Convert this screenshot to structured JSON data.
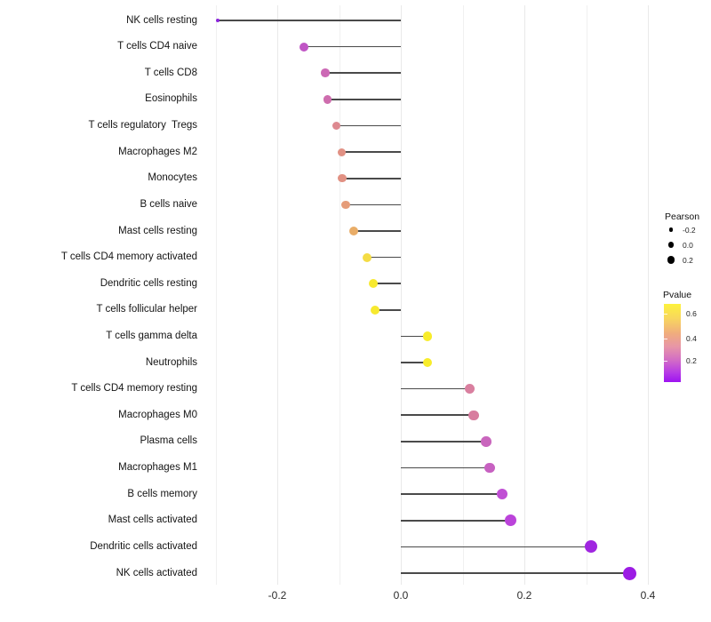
{
  "chart_data": {
    "type": "lollipop",
    "orientation": "horizontal",
    "title": "",
    "xlabel": "",
    "ylabel": "",
    "xlim": [
      -0.31,
      0.42
    ],
    "x_tick_values": [
      -0.2,
      0.0,
      0.2,
      0.4
    ],
    "x_tick_labels": [
      "-0.2",
      "0.0",
      "0.2",
      "0.4"
    ],
    "grid": "vertical gridlines every 0.1 (major at labeled ticks), light gray on white",
    "legend_position": "right",
    "categories": [
      "NK cells resting",
      "T cells CD4 naive",
      "T cells CD8",
      "Eosinophils",
      "T cells regulatory  Tregs",
      "Macrophages M2",
      "Monocytes",
      "B cells naive",
      "Mast cells resting",
      "T cells CD4 memory activated",
      "Dendritic cells resting",
      "T cells follicular helper",
      "T cells gamma delta",
      "Neutrophils",
      "T cells CD4 memory resting",
      "Macrophages M0",
      "Plasma cells",
      "Macrophages M1",
      "B cells memory",
      "Mast cells activated",
      "Dendritic cells activated",
      "NK cells activated"
    ],
    "series": [
      {
        "name": "Pearson",
        "values": [
          -0.296,
          -0.157,
          -0.122,
          -0.119,
          -0.104,
          -0.096,
          -0.095,
          -0.089,
          -0.076,
          -0.055,
          -0.045,
          -0.042,
          0.043,
          0.043,
          0.112,
          0.118,
          0.138,
          0.144,
          0.164,
          0.178,
          0.308,
          0.37
        ]
      },
      {
        "name": "Pvalue (estimated from dot color)",
        "values": [
          0.08,
          0.18,
          0.25,
          0.26,
          0.34,
          0.36,
          0.36,
          0.4,
          0.46,
          0.58,
          0.64,
          0.65,
          0.66,
          0.66,
          0.31,
          0.3,
          0.22,
          0.21,
          0.15,
          0.12,
          0.03,
          0.01
        ]
      }
    ],
    "point_colors": [
      "#8b24dc",
      "#c055c5",
      "#cc68b5",
      "#ce6dae",
      "#dd8990",
      "#e19184",
      "#e19183",
      "#e59c79",
      "#e9ad68",
      "#f4dc45",
      "#f7e92f",
      "#f7e92f",
      "#f8ec2a",
      "#f8ec2a",
      "#d97f9f",
      "#d87d9f",
      "#c966bd",
      "#c761c1",
      "#c04fd4",
      "#bb43da",
      "#a026e0",
      "#9c1ce4"
    ],
    "point_radius_px": [
      2,
      5,
      4.8,
      4.8,
      4.8,
      4.6,
      4.6,
      4.8,
      5,
      5,
      5.2,
      5,
      5.2,
      5.2,
      5.5,
      5.6,
      5.8,
      5.9,
      6.2,
      6.5,
      7,
      7.5
    ],
    "stem_color": "#4a4a4a",
    "legend": {
      "size": {
        "title": "Pearson",
        "entries": [
          {
            "label": "-0.2",
            "radius_px": 2.3
          },
          {
            "label": "0.0",
            "radius_px": 3.3
          },
          {
            "label": "0.2",
            "radius_px": 4.3
          }
        ]
      },
      "color": {
        "title": "Pvalue",
        "tick_labels": [
          "0.6",
          "0.4",
          "0.2"
        ],
        "gradient_top": "#fdf23c",
        "gradient_mid": "#e795a8",
        "gradient_bottom": "#9d13f0"
      }
    }
  }
}
